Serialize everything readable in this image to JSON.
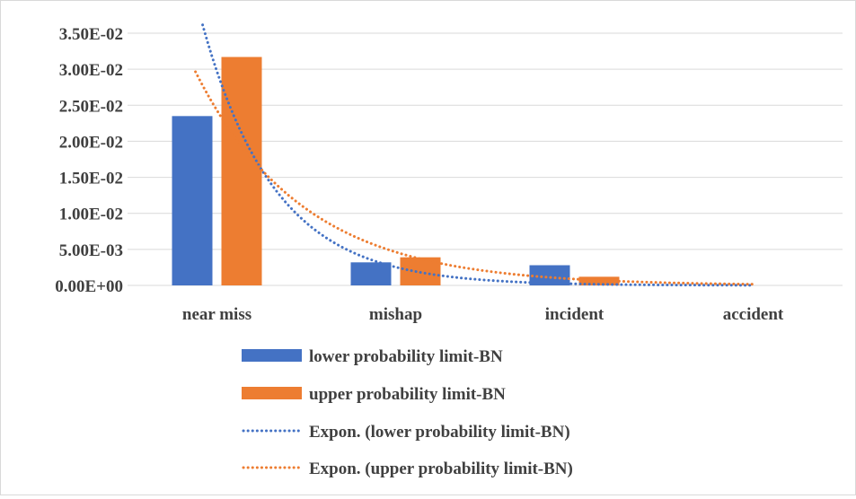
{
  "chart_data": {
    "type": "bar",
    "categories": [
      "near miss",
      "mishap",
      "incident",
      "accident"
    ],
    "series": [
      {
        "name": "lower probability limit-BN",
        "values": [
          0.0235,
          0.0032,
          0.0028,
          0.0
        ],
        "color": "#4472C4"
      },
      {
        "name": "upper probability limit-BN",
        "values": [
          0.0317,
          0.0039,
          0.0012,
          0.0
        ],
        "color": "#ED7D31"
      }
    ],
    "trendlines": [
      {
        "name": "Expon. (lower probability limit-BN)",
        "type": "exponential",
        "style": "dotted",
        "color": "#4472C4",
        "points": [
          {
            "x": 0.92,
            "y": 0.035
          },
          {
            "x": 1,
            "y": 0.0297
          },
          {
            "x": 2,
            "y": 0.00254
          },
          {
            "x": 3,
            "y": 0.000218
          },
          {
            "x": 4,
            "y": 1.87e-05
          }
        ]
      },
      {
        "name": "Expon. (upper probability limit-BN)",
        "type": "exponential",
        "style": "dotted",
        "color": "#ED7D31",
        "points": [
          {
            "x": 0.88,
            "y": 0.031
          },
          {
            "x": 1,
            "y": 0.0243
          },
          {
            "x": 2,
            "y": 0.00463
          },
          {
            "x": 3,
            "y": 0.00088
          },
          {
            "x": 4,
            "y": 0.000168
          }
        ]
      }
    ],
    "yticks": [
      "0.00E+00",
      "5.00E-03",
      "1.00E-02",
      "1.50E-02",
      "2.00E-02",
      "2.50E-02",
      "3.00E-02",
      "3.50E-02"
    ],
    "ylim": [
      0,
      0.035
    ],
    "grid": true,
    "legend_position": "bottom",
    "title": "",
    "xlabel": "",
    "ylabel": ""
  }
}
